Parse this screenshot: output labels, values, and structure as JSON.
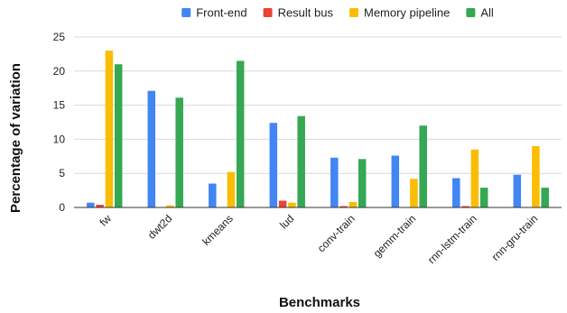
{
  "chart_data": {
    "type": "bar",
    "categories": [
      "fw",
      "dwt2d",
      "kmeans",
      "lud",
      "conv-train",
      "gemm-train",
      "rnn-lstm-train",
      "rnn-gru-train"
    ],
    "series": [
      {
        "name": "Front-end",
        "color": "#4285F4",
        "values": [
          0.7,
          17.1,
          3.5,
          12.4,
          7.3,
          7.6,
          4.3,
          4.8
        ]
      },
      {
        "name": "Result bus",
        "color": "#EA4335",
        "values": [
          0.4,
          0.0,
          0.0,
          1.0,
          0.2,
          0.0,
          0.2,
          0.0
        ]
      },
      {
        "name": "Memory pipeline",
        "color": "#FBBC04",
        "values": [
          23.0,
          0.3,
          5.2,
          0.7,
          0.8,
          4.2,
          8.5,
          9.0
        ]
      },
      {
        "name": "All",
        "color": "#34A853",
        "values": [
          21.0,
          16.1,
          21.5,
          13.4,
          7.1,
          12.0,
          2.9,
          2.9
        ]
      }
    ],
    "title": "",
    "xlabel": "Benchmarks",
    "ylabel": "Percentage of variation",
    "ylim": [
      0,
      25
    ],
    "yticks": [
      0,
      5,
      10,
      15,
      20,
      25
    ],
    "grid": true,
    "legend": "top"
  }
}
